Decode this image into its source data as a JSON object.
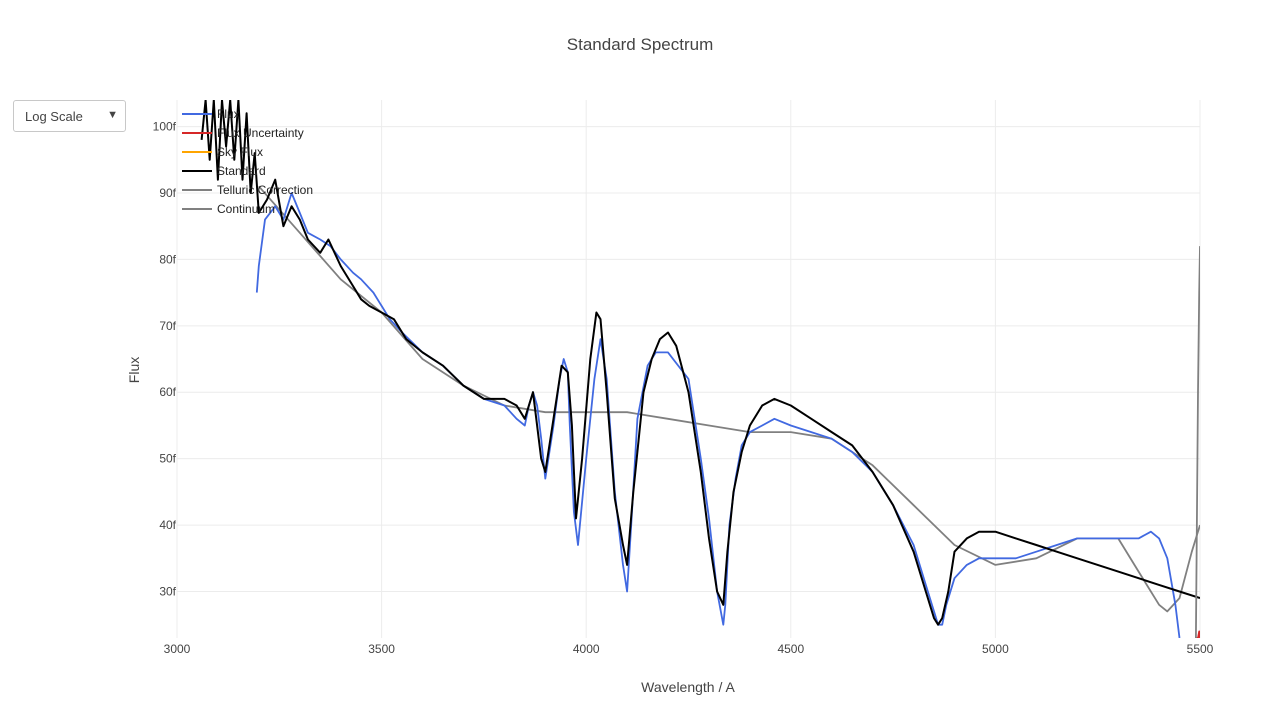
{
  "menu": {
    "scale_label": "Log Scale",
    "caret": "▼"
  },
  "chart_data": {
    "type": "line",
    "title": "Standard Spectrum",
    "xlabel": "Wavelength / A",
    "ylabel": "Flux",
    "xlim": [
      3000,
      5500
    ],
    "ylim": [
      23,
      104
    ],
    "x_ticks": [
      3000,
      3500,
      4000,
      4500,
      5000,
      5500
    ],
    "y_ticks": [
      30,
      40,
      50,
      60,
      70,
      80,
      90,
      100
    ],
    "y_tick_suffix": "f",
    "grid": true,
    "legend_position": "top-left",
    "series": [
      {
        "name": "Flux",
        "color": "#4169e1",
        "x": [
          3195,
          3200,
          3215,
          3240,
          3260,
          3280,
          3300,
          3320,
          3350,
          3375,
          3400,
          3430,
          3450,
          3480,
          3500,
          3520,
          3550,
          3600,
          3650,
          3700,
          3750,
          3800,
          3830,
          3850,
          3860,
          3870,
          3880,
          3890,
          3900,
          3920,
          3935,
          3945,
          3955,
          3960,
          3970,
          3980,
          4000,
          4020,
          4035,
          4050,
          4070,
          4090,
          4100,
          4110,
          4125,
          4150,
          4170,
          4200,
          4250,
          4280,
          4300,
          4320,
          4335,
          4340,
          4350,
          4365,
          4380,
          4400,
          4430,
          4460,
          4500,
          4550,
          4600,
          4650,
          4700,
          4750,
          4800,
          4830,
          4850,
          4860,
          4870,
          4880,
          4900,
          4930,
          4960,
          5000,
          5050,
          5100,
          5150,
          5200,
          5250,
          5300,
          5350,
          5380,
          5400,
          5420,
          5440,
          5450
        ],
        "y": [
          75,
          79,
          86,
          88,
          86,
          90,
          87,
          84,
          83,
          82,
          80,
          78,
          77,
          75,
          73,
          71,
          69,
          66,
          64,
          61,
          59,
          58,
          56,
          55,
          58,
          60,
          58,
          53,
          47,
          55,
          62,
          65,
          63,
          55,
          42,
          37,
          50,
          62,
          68,
          62,
          45,
          34,
          30,
          40,
          56,
          64,
          66,
          66,
          62,
          50,
          41,
          30,
          25,
          28,
          40,
          47,
          52,
          54,
          55,
          56,
          55,
          54,
          53,
          51,
          48,
          43,
          37,
          31,
          27,
          25,
          25,
          28,
          32,
          34,
          35,
          35,
          35,
          36,
          37,
          38,
          38,
          38,
          38,
          39,
          38,
          35,
          28,
          23
        ]
      },
      {
        "name": "Flux Uncertainty",
        "color": "#d62728",
        "x": [
          5490,
          5495,
          5498,
          5500
        ],
        "y": [
          23,
          23,
          24,
          23
        ]
      },
      {
        "name": "Sky Flux",
        "color": "#ffa500",
        "x": [],
        "y": []
      },
      {
        "name": "Standard",
        "color": "#000000",
        "x": [
          3060,
          3070,
          3080,
          3090,
          3100,
          3110,
          3120,
          3130,
          3140,
          3150,
          3160,
          3170,
          3180,
          3190,
          3200,
          3220,
          3240,
          3260,
          3280,
          3300,
          3320,
          3350,
          3370,
          3400,
          3430,
          3450,
          3470,
          3500,
          3530,
          3560,
          3600,
          3650,
          3700,
          3750,
          3800,
          3830,
          3850,
          3870,
          3890,
          3900,
          3920,
          3940,
          3955,
          3965,
          3975,
          3990,
          4010,
          4025,
          4035,
          4050,
          4070,
          4090,
          4100,
          4115,
          4140,
          4160,
          4180,
          4200,
          4220,
          4250,
          4280,
          4300,
          4320,
          4335,
          4345,
          4360,
          4380,
          4400,
          4430,
          4460,
          4500,
          4550,
          4600,
          4650,
          4700,
          4750,
          4800,
          4830,
          4850,
          4860,
          4870,
          4885,
          4900,
          4930,
          4960,
          5000,
          5050,
          5100,
          5150,
          5200,
          5250,
          5300,
          5350,
          5400,
          5450,
          5500
        ],
        "y": [
          98,
          104,
          95,
          104,
          92,
          104,
          97,
          104,
          95,
          104,
          92,
          102,
          90,
          96,
          87,
          89,
          92,
          85,
          88,
          86,
          83,
          81,
          83,
          79,
          76,
          74,
          73,
          72,
          71,
          68,
          66,
          64,
          61,
          59,
          59,
          58,
          56,
          60,
          50,
          48,
          56,
          64,
          63,
          55,
          41,
          50,
          65,
          72,
          71,
          60,
          44,
          37,
          34,
          45,
          60,
          65,
          68,
          69,
          67,
          60,
          48,
          38,
          30,
          28,
          36,
          45,
          51,
          55,
          58,
          59,
          58,
          56,
          54,
          52,
          48,
          43,
          36,
          30,
          26,
          25,
          26,
          30,
          36,
          38,
          39,
          39,
          38,
          37,
          36,
          35,
          34,
          33,
          32,
          31,
          30,
          29
        ]
      },
      {
        "name": "Telluric Correction",
        "color": "#808080",
        "x": [
          5490,
          5495,
          5498,
          5500
        ],
        "y": [
          23,
          60,
          75,
          82
        ]
      },
      {
        "name": "Continuum",
        "color": "#808080",
        "x": [
          3200,
          3300,
          3400,
          3500,
          3600,
          3700,
          3800,
          3900,
          4000,
          4100,
          4200,
          4300,
          4400,
          4500,
          4600,
          4700,
          4800,
          4900,
          5000,
          5100,
          5200,
          5300,
          5350,
          5400,
          5420,
          5450,
          5480,
          5500
        ],
        "y": [
          91,
          84,
          77,
          72,
          65,
          61,
          58,
          57,
          57,
          57,
          56,
          55,
          54,
          54,
          53,
          49,
          43,
          37,
          34,
          35,
          38,
          38,
          33,
          28,
          27,
          29,
          36,
          40
        ]
      }
    ]
  }
}
